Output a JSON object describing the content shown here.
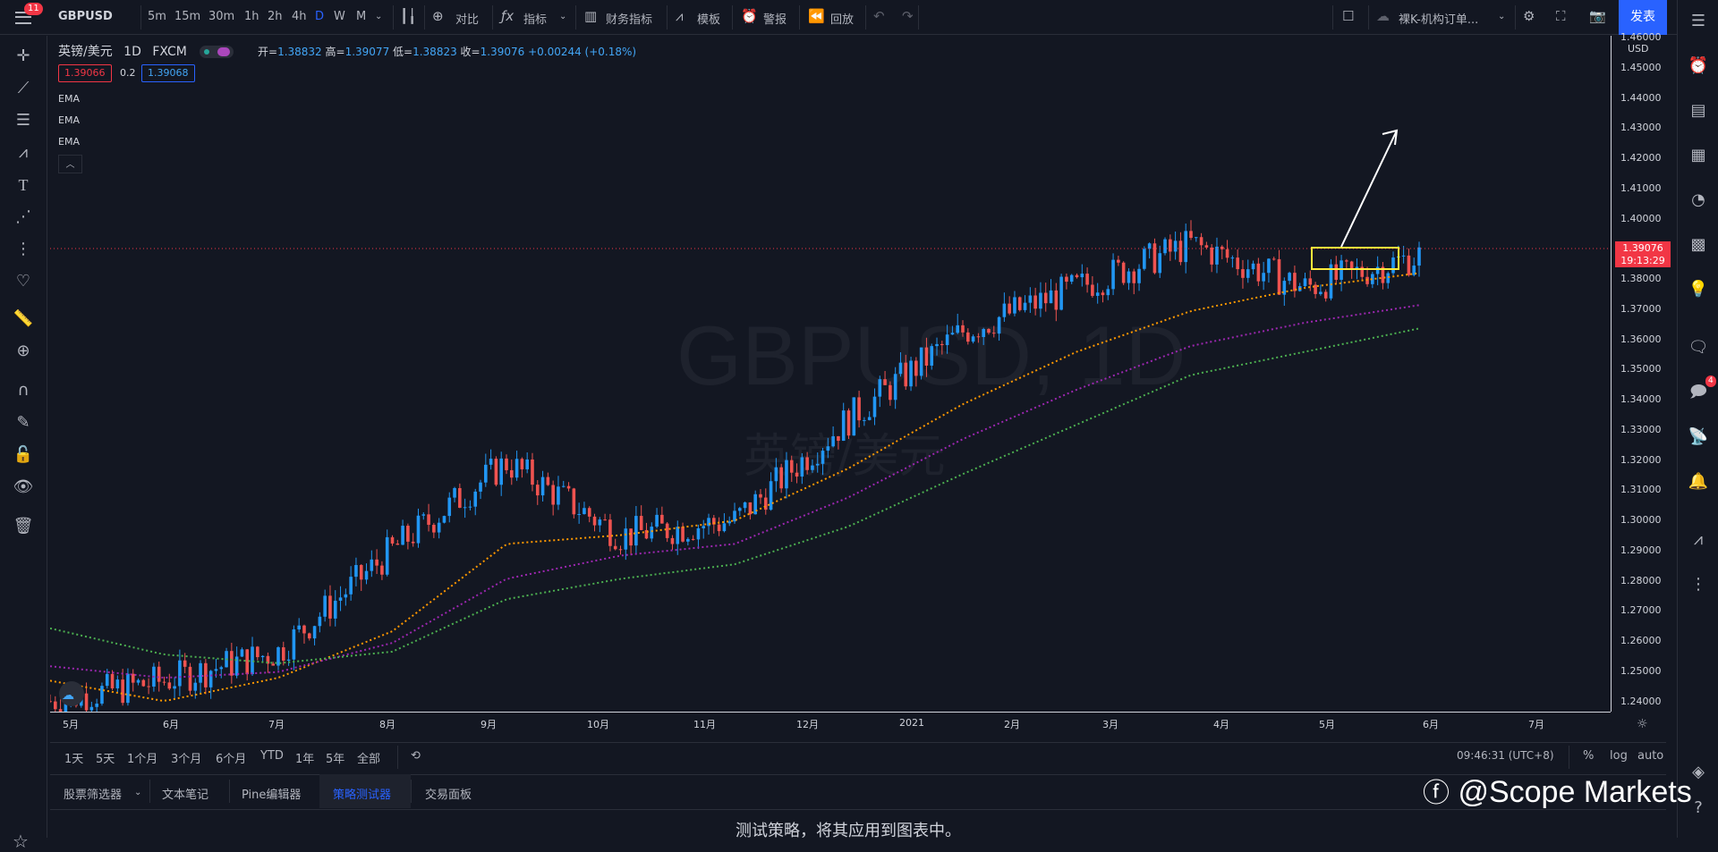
{
  "header": {
    "notification_count": "11",
    "symbol": "GBPUSD",
    "timeframes": [
      "5m",
      "15m",
      "30m",
      "1h",
      "2h",
      "4h",
      "D",
      "W",
      "M"
    ],
    "active_timeframe": "D",
    "compare": "对比",
    "indicators": "指标",
    "financials": "财务指标",
    "templates": "模板",
    "alert": "警报",
    "replay": "回放",
    "layout_name": "裸K-机构订单...",
    "publish": "发表"
  },
  "legend": {
    "title": "英镑/美元",
    "interval": "1D",
    "source": "FXCM",
    "open_label": "开=",
    "open": "1.38832",
    "high_label": "高=",
    "high": "1.39077",
    "low_label": "低=",
    "low": "1.38823",
    "close_label": "收=",
    "close": "1.39076",
    "change": "+0.00244 (+0.18%)",
    "bid": "1.39066",
    "spread": "0.2",
    "ask": "1.39068",
    "emas": [
      "EMA",
      "EMA",
      "EMA"
    ]
  },
  "watermark_symbol": "GBPUSD, 1D",
  "watermark_name": "英镑/美元",
  "price_axis": {
    "currency": "USD",
    "labels": [
      "1.46000",
      "1.45000",
      "1.44000",
      "1.43000",
      "1.42000",
      "1.41000",
      "1.40000",
      "1.39000",
      "1.38000",
      "1.37000",
      "1.36000",
      "1.35000",
      "1.34000",
      "1.33000",
      "1.32000",
      "1.31000",
      "1.30000",
      "1.29000",
      "1.28000",
      "1.27000",
      "1.26000",
      "1.25000",
      "1.24000"
    ],
    "last_price": "1.39076",
    "countdown": "19:13:29"
  },
  "time_axis": [
    "5月",
    "6月",
    "7月",
    "8月",
    "9月",
    "10月",
    "11月",
    "12月",
    "2021",
    "2月",
    "3月",
    "4月",
    "5月",
    "6月",
    "7月"
  ],
  "range_bar": {
    "ranges": [
      "1天",
      "5天",
      "1个月",
      "3个月",
      "6个月",
      "YTD",
      "1年",
      "5年",
      "全部"
    ],
    "clock": "09:46:31 (UTC+8)",
    "percent": "%",
    "log": "log",
    "auto": "auto"
  },
  "bottom_tabs": [
    "股票筛选器",
    "文本笔记",
    "Pine编辑器",
    "策略测试器",
    "交易面板"
  ],
  "active_tab": "策略测试器",
  "strategy_message": "测试策略，将其应用到图表中。",
  "brand_watermark": "@Scope Markets",
  "colors": {
    "background": "#131722",
    "up_candle": "#2196f3",
    "down_candle": "#ef5350",
    "ema_fast": "#ff9800",
    "ema_mid": "#9c27b0",
    "ema_slow": "#4caf50",
    "highlight_box": "#ffeb3b",
    "accent": "#2962ff"
  },
  "chart_data": {
    "type": "candlestick",
    "symbol": "GBPUSD",
    "interval": "1D",
    "x": [
      "5月",
      "6月",
      "7月",
      "8月",
      "9月",
      "10月",
      "11月",
      "12月",
      "2021",
      "2月",
      "3月",
      "4月",
      "5月"
    ],
    "close_approx": [
      1.238,
      1.245,
      1.255,
      1.29,
      1.32,
      1.295,
      1.3,
      1.335,
      1.365,
      1.38,
      1.395,
      1.38,
      1.391
    ],
    "ylim": [
      1.235,
      1.465
    ],
    "ema_series": [
      {
        "name": "EMA",
        "color": "#ff9800",
        "values": [
          1.245,
          1.238,
          1.246,
          1.262,
          1.292,
          1.295,
          1.3,
          1.318,
          1.34,
          1.358,
          1.372,
          1.38,
          1.385
        ]
      },
      {
        "name": "EMA",
        "color": "#9c27b0",
        "values": [
          1.25,
          1.246,
          1.248,
          1.258,
          1.28,
          1.288,
          1.292,
          1.308,
          1.328,
          1.345,
          1.36,
          1.368,
          1.374
        ]
      },
      {
        "name": "EMA",
        "color": "#4caf50",
        "values": [
          1.263,
          1.254,
          1.251,
          1.255,
          1.273,
          1.28,
          1.285,
          1.298,
          1.316,
          1.333,
          1.35,
          1.358,
          1.366
        ]
      }
    ],
    "last_price": 1.39076
  }
}
